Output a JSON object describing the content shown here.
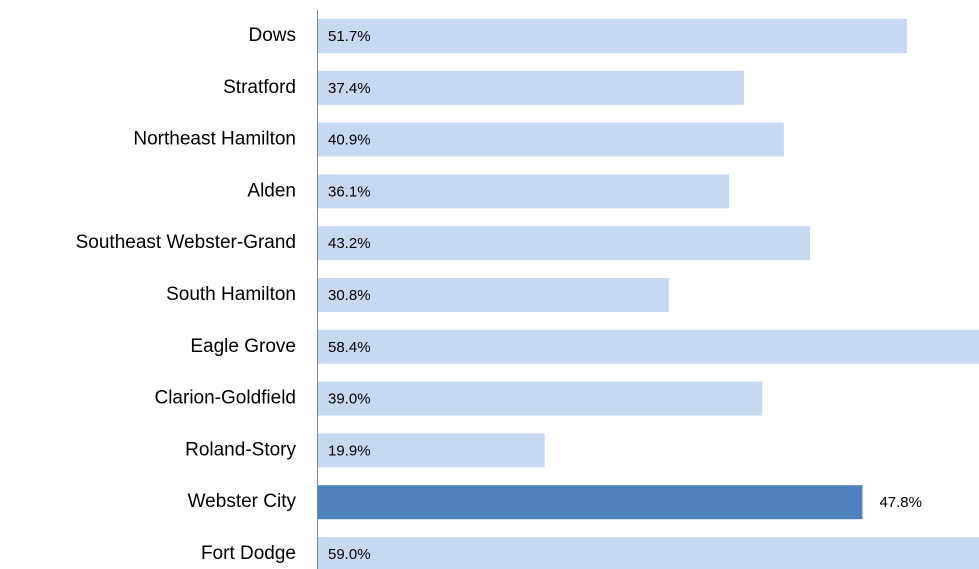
{
  "chart_data": {
    "type": "barh",
    "categories": [
      "Dows",
      "Stratford",
      "Northeast Hamilton",
      "Alden",
      "Southeast Webster-Grand",
      "South Hamilton",
      "Eagle Grove",
      "Clarion-Goldfield",
      "Roland-Story",
      "Webster City",
      "Fort Dodge"
    ],
    "values": [
      51.7,
      37.4,
      40.9,
      36.1,
      43.2,
      30.8,
      58.4,
      39.0,
      19.9,
      47.8,
      59.0
    ],
    "value_labels": [
      "51.7%",
      "37.4%",
      "40.9%",
      "36.1%",
      "43.2%",
      "30.8%",
      "58.4%",
      "39.0%",
      "19.9%",
      "47.8%",
      "59.0%"
    ],
    "color": "#c6d9f1",
    "highlight_color": "#4f81bd",
    "highlight": "Webster City"
  }
}
